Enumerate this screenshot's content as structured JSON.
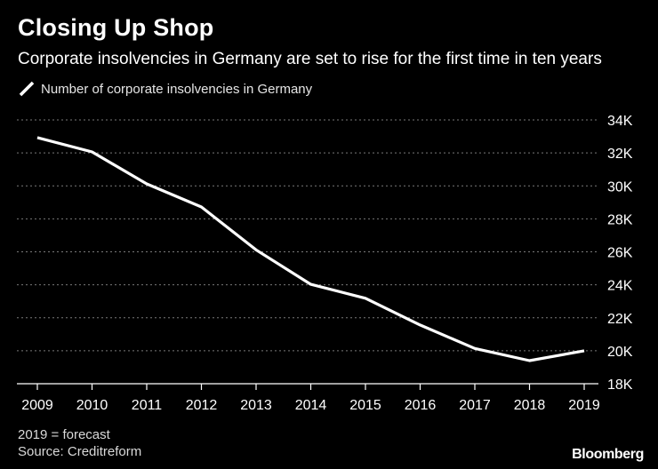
{
  "chart_data": {
    "type": "line",
    "title": "Closing Up Shop",
    "subtitle": "Corporate insolvencies in Germany are set to rise for the first time in ten years",
    "xlabel": "",
    "ylabel": "",
    "categories": [
      "2009",
      "2010",
      "2011",
      "2012",
      "2013",
      "2014",
      "2015",
      "2016",
      "2017",
      "2018",
      "2019"
    ],
    "series": [
      {
        "name": "Number of corporate insolvencies in Germany",
        "values": [
          32930,
          32060,
          30120,
          28720,
          26120,
          24030,
          23180,
          21560,
          20140,
          19400,
          20000
        ]
      }
    ],
    "ylim": [
      18000,
      34000
    ],
    "yticks": [
      18000,
      20000,
      22000,
      24000,
      26000,
      28000,
      30000,
      32000,
      34000
    ],
    "ytick_labels": [
      "18K",
      "20K",
      "22K",
      "24K",
      "26K",
      "28K",
      "30K",
      "32K",
      "34K"
    ],
    "grid": true,
    "legend": "top-left",
    "notes": [
      "2019 = forecast",
      "Source: Creditreform"
    ],
    "brand": "Bloomberg"
  },
  "colors": {
    "background": "#000000",
    "line": "#ffffff",
    "grid": "#7a7a7a",
    "axis": "#ffffff",
    "text": "#ffffff"
  }
}
